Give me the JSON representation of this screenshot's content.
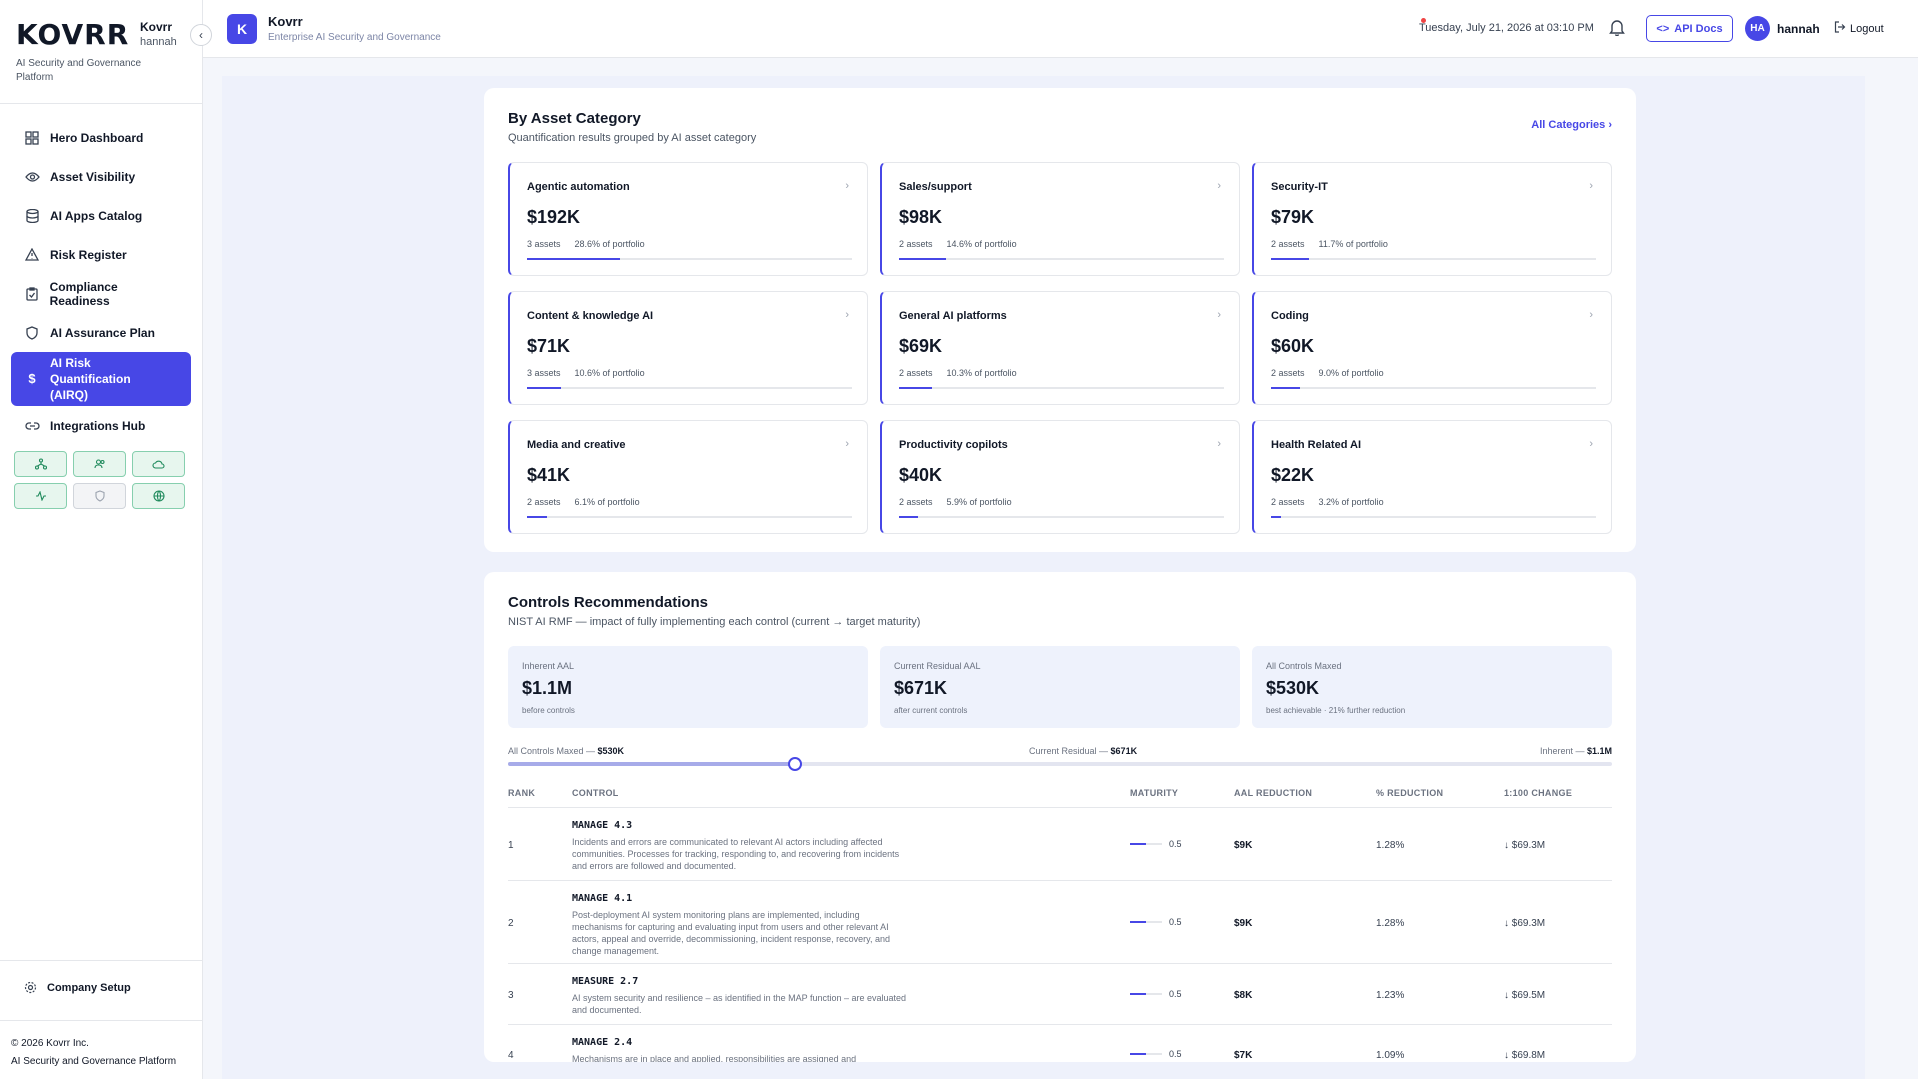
{
  "brand": {
    "logo": "KOVRR",
    "name": "Kovrr",
    "user": "hannah",
    "tagline": "AI Security and Governance Platform"
  },
  "nav": {
    "items": [
      {
        "label": "Hero Dashboard",
        "icon": "grid-icon"
      },
      {
        "label": "Asset Visibility",
        "icon": "eye-icon"
      },
      {
        "label": "AI Apps Catalog",
        "icon": "database-icon"
      },
      {
        "label": "Risk Register",
        "icon": "warning-icon"
      },
      {
        "label": "Compliance Readiness",
        "icon": "clipboard-icon"
      },
      {
        "label": "AI Assurance Plan",
        "icon": "shield-icon"
      },
      {
        "label": "AI Risk Quantification (AIRQ)",
        "icon": "dollar-icon",
        "active": true
      },
      {
        "label": "Integrations Hub",
        "icon": "link-icon"
      }
    ],
    "company_setup": "Company Setup"
  },
  "footer": {
    "copyright": "© 2026 Kovrr Inc.",
    "tagline": "AI Security and Governance Platform"
  },
  "header": {
    "logo_letter": "K",
    "title": "Kovrr",
    "subtitle": "Enterprise AI Security and Governance",
    "datetime": "Tuesday, July 21, 2026 at 03:10 PM",
    "api_docs": "API Docs",
    "avatar": "HA",
    "user": "hannah",
    "logout": "Logout"
  },
  "asset_category": {
    "title": "By Asset Category",
    "subtitle": "Quantification results grouped by AI asset category",
    "all_link": "All Categories",
    "categories": [
      {
        "name": "Agentic automation",
        "value": "$192K",
        "assets": "3 assets",
        "portfolio": "28.6% of portfolio",
        "share": 0.286
      },
      {
        "name": "Sales/support",
        "value": "$98K",
        "assets": "2 assets",
        "portfolio": "14.6% of portfolio",
        "share": 0.146
      },
      {
        "name": "Security-IT",
        "value": "$79K",
        "assets": "2 assets",
        "portfolio": "11.7% of portfolio",
        "share": 0.117
      },
      {
        "name": "Content & knowledge AI",
        "value": "$71K",
        "assets": "3 assets",
        "portfolio": "10.6% of portfolio",
        "share": 0.106
      },
      {
        "name": "General AI platforms",
        "value": "$69K",
        "assets": "2 assets",
        "portfolio": "10.3% of portfolio",
        "share": 0.103
      },
      {
        "name": "Coding",
        "value": "$60K",
        "assets": "2 assets",
        "portfolio": "9.0% of portfolio",
        "share": 0.09
      },
      {
        "name": "Media and creative",
        "value": "$41K",
        "assets": "2 assets",
        "portfolio": "6.1% of portfolio",
        "share": 0.061
      },
      {
        "name": "Productivity copilots",
        "value": "$40K",
        "assets": "2 assets",
        "portfolio": "5.9% of portfolio",
        "share": 0.059
      },
      {
        "name": "Health Related AI",
        "value": "$22K",
        "assets": "2 assets",
        "portfolio": "3.2% of portfolio",
        "share": 0.032
      }
    ]
  },
  "controls": {
    "title": "Controls Recommendations",
    "subtitle": "NIST AI RMF — impact of fully implementing each control (current → target maturity)",
    "stats": [
      {
        "label": "Inherent AAL",
        "value": "$1.1M",
        "note": "before controls"
      },
      {
        "label": "Current Residual AAL",
        "value": "$671K",
        "note": "after current controls"
      },
      {
        "label": "All Controls Maxed",
        "value": "$530K",
        "note": "best achievable · 21% further reduction"
      }
    ],
    "slider": {
      "left_label": "All Controls Maxed — ",
      "left_value": "$530K",
      "mid_label": "Current Residual — ",
      "mid_value": "$671K",
      "right_label": "Inherent — ",
      "right_value": "$1.1M",
      "position": 0.26
    },
    "columns": [
      "RANK",
      "CONTROL",
      "MATURITY",
      "AAL REDUCTION",
      "% REDUCTION",
      "1:100 CHANGE"
    ],
    "rows": [
      {
        "rank": "1",
        "code": "MANAGE 4.3",
        "desc": "Incidents and errors are communicated to relevant AI actors including affected communities. Processes for tracking, responding to, and recovering from incidents and errors are followed and documented.",
        "maturity": "0.5",
        "maturity_level": 0.5,
        "aal": "$9K",
        "pct": "1.28%",
        "change": "↓ $69.3M"
      },
      {
        "rank": "2",
        "code": "MANAGE 4.1",
        "desc": "Post-deployment AI system monitoring plans are implemented, including mechanisms for capturing and evaluating input from users and other relevant AI actors, appeal and override, decommissioning, incident response, recovery, and change management.",
        "maturity": "0.5",
        "maturity_level": 0.5,
        "aal": "$9K",
        "pct": "1.28%",
        "change": "↓ $69.3M"
      },
      {
        "rank": "3",
        "code": "MEASURE 2.7",
        "desc": "AI system security and resilience – as identified in the MAP function – are evaluated and documented.",
        "maturity": "0.5",
        "maturity_level": 0.5,
        "aal": "$8K",
        "pct": "1.23%",
        "change": "↓ $69.5M"
      },
      {
        "rank": "4",
        "code": "MANAGE 2.4",
        "desc": "Mechanisms are in place and applied, responsibilities are assigned and",
        "maturity": "0.5",
        "maturity_level": 0.5,
        "aal": "$7K",
        "pct": "1.09%",
        "change": "↓ $69.8M"
      }
    ]
  }
}
